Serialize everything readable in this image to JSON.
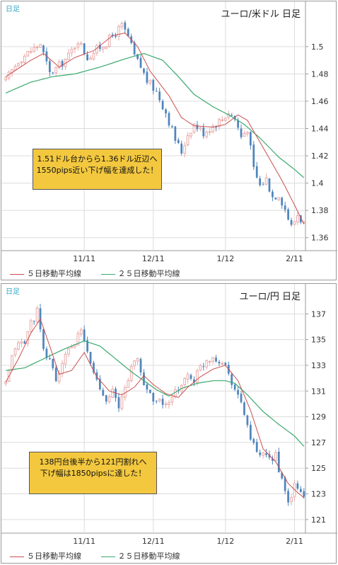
{
  "colors": {
    "up": "#e8aaa8",
    "down": "#4f85bd",
    "ma5": "#c94f4f",
    "ma25": "#3aaa6e",
    "grid": "#dcdcdc",
    "axis_text": "#333333",
    "note_bg": "#f3c83f"
  },
  "legend": {
    "ma5_label": "５日移動平均線",
    "ma25_label": "２５日移動平均線"
  },
  "chart_data": [
    {
      "type": "candlestick",
      "title": "ユーロ/米ドル  日足",
      "timeframe_label": "日足",
      "ylim": [
        1.35,
        1.53
      ],
      "yticks": [
        1.36,
        1.38,
        1.4,
        1.42,
        1.44,
        1.46,
        1.48,
        1.5
      ],
      "xticks": [
        {
          "label": "11/11",
          "index": 25
        },
        {
          "label": "12/11",
          "index": 47
        },
        {
          "label": "1/12",
          "index": 70
        },
        {
          "label": "2/11",
          "index": 92
        }
      ],
      "n_bars": 96,
      "ma5": [
        [
          0,
          1.478
        ],
        [
          8,
          1.49
        ],
        [
          12,
          1.495
        ],
        [
          17,
          1.485
        ],
        [
          22,
          1.492
        ],
        [
          28,
          1.497
        ],
        [
          34,
          1.508
        ],
        [
          38,
          1.51
        ],
        [
          42,
          1.5
        ],
        [
          46,
          1.482
        ],
        [
          52,
          1.464
        ],
        [
          56,
          1.448
        ],
        [
          60,
          1.442
        ],
        [
          66,
          1.441
        ],
        [
          70,
          1.443
        ],
        [
          74,
          1.45
        ],
        [
          77,
          1.446
        ],
        [
          82,
          1.426
        ],
        [
          88,
          1.402
        ],
        [
          92,
          1.384
        ],
        [
          95,
          1.37
        ]
      ],
      "ma25": [
        [
          0,
          1.466
        ],
        [
          8,
          1.474
        ],
        [
          15,
          1.478
        ],
        [
          22,
          1.48
        ],
        [
          30,
          1.485
        ],
        [
          38,
          1.491
        ],
        [
          44,
          1.495
        ],
        [
          50,
          1.49
        ],
        [
          55,
          1.478
        ],
        [
          60,
          1.465
        ],
        [
          66,
          1.456
        ],
        [
          71,
          1.45
        ],
        [
          76,
          1.443
        ],
        [
          81,
          1.433
        ],
        [
          87,
          1.419
        ],
        [
          92,
          1.41
        ],
        [
          95,
          1.404
        ]
      ],
      "anchors": [
        [
          0,
          1.475
        ],
        [
          4,
          1.49
        ],
        [
          8,
          1.497
        ],
        [
          11,
          1.502
        ],
        [
          14,
          1.48
        ],
        [
          17,
          1.486
        ],
        [
          20,
          1.493
        ],
        [
          23,
          1.505
        ],
        [
          26,
          1.492
        ],
        [
          29,
          1.498
        ],
        [
          32,
          1.503
        ],
        [
          35,
          1.51
        ],
        [
          37,
          1.515
        ],
        [
          39,
          1.507
        ],
        [
          41,
          1.493
        ],
        [
          43,
          1.485
        ],
        [
          45,
          1.475
        ],
        [
          48,
          1.467
        ],
        [
          51,
          1.452
        ],
        [
          54,
          1.432
        ],
        [
          56,
          1.423
        ],
        [
          58,
          1.436
        ],
        [
          60,
          1.443
        ],
        [
          63,
          1.437
        ],
        [
          66,
          1.442
        ],
        [
          69,
          1.447
        ],
        [
          71,
          1.452
        ],
        [
          73,
          1.447
        ],
        [
          75,
          1.434
        ],
        [
          77,
          1.44
        ],
        [
          79,
          1.41
        ],
        [
          81,
          1.398
        ],
        [
          83,
          1.403
        ],
        [
          85,
          1.39
        ],
        [
          87,
          1.392
        ],
        [
          89,
          1.381
        ],
        [
          91,
          1.368
        ],
        [
          93,
          1.377
        ],
        [
          95,
          1.37
        ]
      ],
      "annotation": "1.51ドル台からら1.36ドル近辺へ\n1550pips近い下げ幅を達成した！"
    },
    {
      "type": "candlestick",
      "title": "ユーロ/円  日足",
      "timeframe_label": "日足",
      "ylim": [
        120,
        139
      ],
      "yticks": [
        121,
        123,
        125,
        127,
        129,
        131,
        133,
        135,
        137
      ],
      "xticks": [
        {
          "label": "11/11",
          "index": 25
        },
        {
          "label": "12/11",
          "index": 47
        },
        {
          "label": "1/12",
          "index": 70
        },
        {
          "label": "2/11",
          "index": 92
        }
      ],
      "n_bars": 96,
      "ma5": [
        [
          0,
          131.7
        ],
        [
          4,
          133.5
        ],
        [
          8,
          135.5
        ],
        [
          11,
          136.6
        ],
        [
          14,
          134.5
        ],
        [
          17,
          132.3
        ],
        [
          21,
          132.6
        ],
        [
          25,
          134
        ],
        [
          29,
          132.1
        ],
        [
          33,
          131
        ],
        [
          37,
          130.7
        ],
        [
          41,
          131.3
        ],
        [
          44,
          132.2
        ],
        [
          47,
          131.5
        ],
        [
          51,
          130.8
        ],
        [
          55,
          130.5
        ],
        [
          58,
          131.3
        ],
        [
          62,
          132.1
        ],
        [
          66,
          132.7
        ],
        [
          70,
          133
        ],
        [
          74,
          131.8
        ],
        [
          78,
          129.5
        ],
        [
          82,
          126.5
        ],
        [
          86,
          125.5
        ],
        [
          90,
          123.8
        ],
        [
          93,
          123.1
        ],
        [
          95,
          122.7
        ]
      ],
      "ma25": [
        [
          0,
          132.6
        ],
        [
          6,
          132.8
        ],
        [
          12,
          133.5
        ],
        [
          18,
          134.2
        ],
        [
          25,
          134.9
        ],
        [
          30,
          134.5
        ],
        [
          35,
          133.5
        ],
        [
          40,
          132.5
        ],
        [
          44,
          131.8
        ],
        [
          48,
          131.1
        ],
        [
          52,
          130.6
        ],
        [
          56,
          131.2
        ],
        [
          61,
          131.6
        ],
        [
          66,
          131.8
        ],
        [
          70,
          131.8
        ],
        [
          73,
          131.6
        ],
        [
          77,
          130.7
        ],
        [
          82,
          129.4
        ],
        [
          87,
          128.4
        ],
        [
          92,
          127.5
        ],
        [
          95,
          126.7
        ]
      ],
      "anchors": [
        [
          0,
          131.5
        ],
        [
          3,
          134.5
        ],
        [
          6,
          134.8
        ],
        [
          8,
          136.3
        ],
        [
          10,
          137.2
        ],
        [
          12,
          134
        ],
        [
          14,
          133.5
        ],
        [
          16,
          131.9
        ],
        [
          18,
          132.9
        ],
        [
          20,
          134.4
        ],
        [
          22,
          134.7
        ],
        [
          24,
          135.7
        ],
        [
          26,
          133.9
        ],
        [
          28,
          132.5
        ],
        [
          30,
          131.2
        ],
        [
          32,
          130.5
        ],
        [
          34,
          131
        ],
        [
          36,
          129.6
        ],
        [
          38,
          131.3
        ],
        [
          40,
          132.8
        ],
        [
          42,
          133.5
        ],
        [
          44,
          131.5
        ],
        [
          46,
          130.8
        ],
        [
          48,
          130.2
        ],
        [
          50,
          130.1
        ],
        [
          52,
          129.9
        ],
        [
          54,
          130.8
        ],
        [
          56,
          131.6
        ],
        [
          58,
          132.2
        ],
        [
          60,
          131.9
        ],
        [
          62,
          132.8
        ],
        [
          64,
          133.4
        ],
        [
          66,
          133.7
        ],
        [
          68,
          133.4
        ],
        [
          70,
          133
        ],
        [
          72,
          131.8
        ],
        [
          74,
          130.6
        ],
        [
          76,
          129.3
        ],
        [
          78,
          127.3
        ],
        [
          80,
          126.1
        ],
        [
          82,
          125.9
        ],
        [
          84,
          125.6
        ],
        [
          86,
          126.1
        ],
        [
          88,
          123.9
        ],
        [
          90,
          122.2
        ],
        [
          92,
          123.6
        ],
        [
          94,
          123.1
        ],
        [
          95,
          122.8
        ]
      ],
      "annotation": "138円台後半から121円割れへ\n下げ幅は1850pipsに達した！"
    }
  ]
}
